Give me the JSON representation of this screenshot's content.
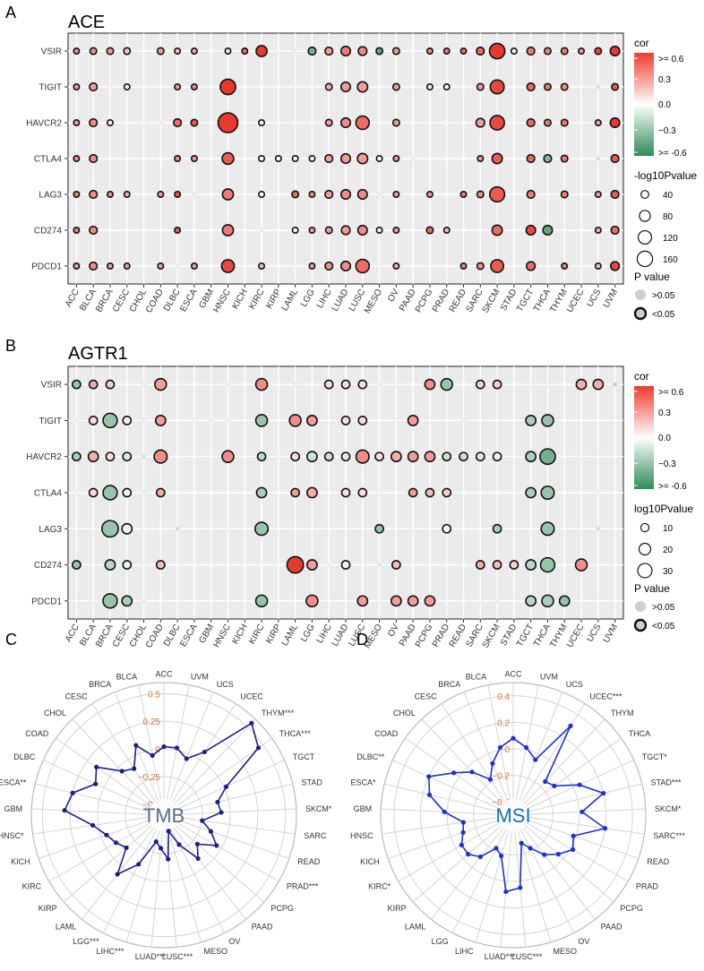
{
  "figure": {
    "panel_letters": [
      "A",
      "B",
      "C",
      "D"
    ],
    "legend": {
      "cor_title": "cor",
      "cor_ticks": [
        ">= 0.6",
        "0.3",
        "0.0",
        "−0.3",
        ">= -0.6"
      ],
      "size_title_ace": "-log10Pvalue",
      "size_values_ace": [
        "40",
        "80",
        "120",
        "160"
      ],
      "size_title_agtr1": "log10Pvalue",
      "size_values_agtr1": [
        "10",
        "20",
        "30"
      ],
      "pvalue_title": "P value",
      "pvalue_labels": [
        ">0.05",
        "<0.05"
      ]
    },
    "colors": {
      "positive": "#e8392f",
      "negative": "#2e8b57",
      "zero": "#ffffff",
      "panel_bg": "#ebebeb",
      "tmb": "#1c1f8a",
      "msi": "#1f2fd6",
      "tick_orange": "#d9733a",
      "tmb_label": "#5a6e8e",
      "msi_label": "#1a6fb8"
    }
  },
  "chart_data": [
    {
      "type": "dot_heatmap",
      "title": "ACE",
      "rows": [
        "VSIR",
        "TIGIT",
        "HAVCR2",
        "CTLA4",
        "LAG3",
        "CD274",
        "PDCD1"
      ],
      "columns": [
        "ACC",
        "BLCA",
        "BRCA",
        "CESC",
        "CHOL",
        "COAD",
        "DLBC",
        "ESCA",
        "GBM",
        "HNSC",
        "KICH",
        "KIRC",
        "KIRP",
        "LAML",
        "LGG",
        "LIHC",
        "LUAD",
        "LUSC",
        "MESO",
        "OV",
        "PAAD",
        "PCPG",
        "PRAD",
        "READ",
        "SARC",
        "SKCM",
        "STAD",
        "TGCT",
        "THCA",
        "THYM",
        "UCEC",
        "UCS",
        "UVM"
      ],
      "cor": [
        [
          0.35,
          0.35,
          0.3,
          0.2,
          0.02,
          0.3,
          0.2,
          0.25,
          0.01,
          0.1,
          0.45,
          0.6,
          0.05,
          0.1,
          -0.4,
          0.3,
          0.4,
          0.35,
          -0.45,
          0.3,
          0,
          0.35,
          0.4,
          0.45,
          0.45,
          0.7,
          0.02,
          0.4,
          0.35,
          0.4,
          0.3,
          0.55,
          0.6
        ],
        [
          0.3,
          0.3,
          0.05,
          0.05,
          0,
          0.02,
          0.3,
          0.35,
          0.01,
          0.7,
          0.02,
          0,
          0,
          0.05,
          0.05,
          0.25,
          0.3,
          0.3,
          0.02,
          0.3,
          0,
          0.05,
          0.05,
          0,
          0.3,
          0.55,
          0,
          0.45,
          0.4,
          0.35,
          0,
          0.2,
          0.5
        ],
        [
          0.3,
          0.35,
          0.05,
          0.02,
          -0.05,
          0.1,
          0.45,
          0.5,
          0.01,
          0.75,
          0.02,
          0.05,
          0,
          0.05,
          0.05,
          0.3,
          0.35,
          0.45,
          0.02,
          0.3,
          0,
          0,
          0,
          0,
          0.3,
          0.55,
          0,
          0.45,
          0.4,
          0.4,
          0.02,
          0.3,
          0.6
        ],
        [
          0.35,
          0.35,
          0,
          0,
          0,
          0,
          0.35,
          0.3,
          0.01,
          0.5,
          0.02,
          0,
          0,
          0.02,
          0.02,
          0.3,
          0.3,
          0.3,
          0.02,
          0.3,
          -0.1,
          0,
          0,
          0,
          0.3,
          0.5,
          0,
          0.45,
          -0.35,
          0.4,
          0,
          0.2,
          0.5
        ],
        [
          0.4,
          0.35,
          0.35,
          0.25,
          0,
          0.3,
          0.5,
          0.1,
          0,
          0.4,
          0.02,
          0,
          0,
          0.45,
          0.35,
          0.3,
          0.35,
          0.35,
          0.1,
          0.3,
          0,
          0.3,
          0,
          0.4,
          0.35,
          0.5,
          0,
          0.4,
          0.02,
          0.4,
          0,
          0.3,
          0.5
        ],
        [
          0.4,
          0.35,
          0,
          0,
          0,
          0.02,
          0.5,
          0.02,
          0,
          0.4,
          0.02,
          -0.1,
          0,
          0.05,
          0.3,
          0.3,
          0.3,
          0.35,
          0.05,
          0.3,
          0,
          0.45,
          0.2,
          0,
          0.02,
          0.45,
          0,
          0.55,
          -0.45,
          0.02,
          0,
          0.25,
          0.45
        ],
        [
          0.3,
          0.35,
          0.3,
          0.3,
          0.02,
          0.3,
          0.1,
          0.3,
          0,
          0.55,
          0.02,
          0.2,
          0,
          0.05,
          0.3,
          0.35,
          0.35,
          0.45,
          0.02,
          0.25,
          0,
          0.02,
          0,
          0.4,
          0.35,
          0.5,
          0,
          0.45,
          0.02,
          0.4,
          0.02,
          0.2,
          0.55
        ]
      ],
      "neglog10p": [
        [
          20,
          30,
          30,
          30,
          0,
          30,
          20,
          20,
          0,
          20,
          20,
          80,
          0,
          0,
          40,
          40,
          60,
          50,
          30,
          30,
          0,
          20,
          20,
          20,
          40,
          160,
          20,
          40,
          30,
          30,
          20,
          30,
          60
        ],
        [
          20,
          40,
          0,
          20,
          0,
          0,
          20,
          20,
          0,
          160,
          0,
          0,
          0,
          0,
          0,
          30,
          60,
          70,
          0,
          30,
          0,
          10,
          20,
          0,
          30,
          130,
          0,
          40,
          30,
          30,
          0,
          0,
          30
        ],
        [
          20,
          40,
          20,
          0,
          0,
          0,
          40,
          30,
          0,
          260,
          0,
          20,
          0,
          0,
          0,
          30,
          60,
          120,
          0,
          30,
          0,
          0,
          0,
          0,
          50,
          140,
          0,
          40,
          30,
          30,
          0,
          20,
          60
        ],
        [
          20,
          40,
          0,
          0,
          0,
          0,
          20,
          20,
          0,
          90,
          0,
          20,
          20,
          20,
          20,
          40,
          60,
          70,
          20,
          20,
          0,
          0,
          0,
          0,
          20,
          70,
          0,
          40,
          40,
          30,
          0,
          0,
          40
        ],
        [
          20,
          40,
          20,
          20,
          0,
          20,
          20,
          0,
          0,
          80,
          0,
          20,
          0,
          30,
          20,
          40,
          60,
          60,
          0,
          20,
          0,
          20,
          0,
          20,
          30,
          150,
          0,
          40,
          0,
          30,
          0,
          20,
          40
        ],
        [
          20,
          40,
          0,
          0,
          0,
          0,
          20,
          0,
          0,
          80,
          0,
          0,
          0,
          20,
          20,
          30,
          50,
          60,
          20,
          20,
          0,
          30,
          20,
          0,
          0,
          70,
          0,
          60,
          60,
          0,
          0,
          20,
          40
        ],
        [
          20,
          40,
          20,
          20,
          0,
          20,
          0,
          20,
          0,
          110,
          0,
          20,
          0,
          0,
          20,
          40,
          60,
          120,
          0,
          20,
          0,
          0,
          0,
          20,
          30,
          110,
          0,
          50,
          0,
          20,
          0,
          20,
          50
        ]
      ]
    },
    {
      "type": "dot_heatmap",
      "title": "AGTR1",
      "rows": [
        "VSIR",
        "TIGIT",
        "HAVCR2",
        "CTLA4",
        "LAG3",
        "CD274",
        "PDCD1"
      ],
      "columns": [
        "ACC",
        "BLCA",
        "BRCA",
        "CESC",
        "CHOL",
        "COAD",
        "DLBC",
        "ESCA",
        "GBM",
        "HNSC",
        "KICH",
        "KIRC",
        "KIRP",
        "LAML",
        "LGG",
        "LIHC",
        "LUAD",
        "LUSC",
        "MESO",
        "OV",
        "PAAD",
        "PCPG",
        "PRAD",
        "READ",
        "SARC",
        "SKCM",
        "STAD",
        "TGCT",
        "THCA",
        "THYM",
        "UCEC",
        "UCS",
        "UVM"
      ],
      "cor": [
        [
          -0.3,
          0.25,
          0.15,
          0.01,
          -0.1,
          0.3,
          0.02,
          0.01,
          0.05,
          0.1,
          0.01,
          0.35,
          0.01,
          -0.1,
          0,
          0.1,
          0.1,
          0.1,
          0.1,
          0.05,
          0,
          0.35,
          -0.3,
          0,
          0.15,
          0.15,
          0,
          0.05,
          0.05,
          0,
          0.25,
          0.25,
          0.3
        ],
        [
          -0.1,
          0.1,
          -0.3,
          -0.05,
          -0.1,
          0.3,
          0,
          0.05,
          0.1,
          0.1,
          0.01,
          -0.3,
          0,
          0.35,
          0.3,
          0,
          0.1,
          0.1,
          0,
          0.05,
          0.3,
          0.01,
          0,
          0.1,
          0,
          0,
          0,
          -0.25,
          -0.3,
          0,
          0,
          0,
          0
        ],
        [
          -0.25,
          0.25,
          0.1,
          -0.1,
          -0.2,
          0.35,
          0,
          0.02,
          0.05,
          0.35,
          0,
          -0.2,
          -0.05,
          0.1,
          -0.15,
          -0.15,
          -0.1,
          0.35,
          0.1,
          0.25,
          0.3,
          0.3,
          -0.15,
          -0.15,
          -0.1,
          0.05,
          0,
          -0.25,
          -0.4,
          0.01,
          0.05,
          0,
          0
        ],
        [
          -0.05,
          0.1,
          -0.3,
          -0.05,
          -0.1,
          0.25,
          0,
          0,
          0,
          0,
          0,
          -0.25,
          0,
          0.3,
          0.25,
          0,
          0.1,
          0.1,
          0.05,
          0,
          0.3,
          0.2,
          0.15,
          0.01,
          0,
          0,
          0,
          -0.25,
          -0.3,
          0,
          0,
          -0.05,
          0
        ],
        [
          0,
          0,
          -0.3,
          -0.05,
          0.05,
          0,
          -0.2,
          0,
          0,
          0.05,
          0,
          -0.3,
          0,
          0,
          0,
          0,
          0,
          0,
          -0.3,
          0,
          0.05,
          0,
          0.02,
          0,
          0,
          -0.25,
          0,
          0.02,
          -0.3,
          0,
          0,
          -0.2,
          0
        ],
        [
          -0.3,
          0,
          -0.2,
          -0.05,
          -0.05,
          0.2,
          0,
          0,
          0,
          0,
          0,
          0,
          0,
          0.85,
          0.3,
          0.1,
          0.05,
          0,
          -0.15,
          0.2,
          0,
          0,
          0,
          0,
          0.25,
          0.2,
          0.15,
          -0.2,
          -0.3,
          0,
          0.35,
          0,
          0
        ],
        [
          0,
          0.05,
          -0.3,
          -0.25,
          -0.1,
          0,
          0,
          0,
          0,
          0,
          0,
          -0.3,
          0,
          0,
          0.35,
          0,
          0,
          0.3,
          0.05,
          0.3,
          0.3,
          0.3,
          0,
          0,
          0.05,
          -0.1,
          0,
          -0.2,
          -0.25,
          -0.3,
          0,
          0,
          0
        ]
      ],
      "log10p": [
        [
          10,
          10,
          10,
          0,
          0,
          20,
          0,
          0,
          0,
          0,
          0,
          20,
          0,
          0,
          0,
          10,
          10,
          10,
          0,
          0,
          0,
          15,
          20,
          0,
          10,
          10,
          0,
          0,
          0,
          0,
          15,
          15,
          0
        ],
        [
          0,
          10,
          30,
          10,
          0,
          15,
          0,
          0,
          0,
          0,
          0,
          20,
          0,
          20,
          15,
          0,
          10,
          10,
          0,
          0,
          15,
          0,
          0,
          0,
          0,
          0,
          0,
          15,
          20,
          0,
          0,
          0,
          0
        ],
        [
          10,
          15,
          10,
          10,
          0,
          25,
          0,
          0,
          0,
          20,
          0,
          10,
          0,
          10,
          15,
          10,
          10,
          25,
          10,
          15,
          15,
          15,
          10,
          10,
          10,
          10,
          0,
          15,
          35,
          0,
          0,
          0,
          0
        ],
        [
          0,
          10,
          30,
          10,
          0,
          10,
          0,
          0,
          0,
          0,
          0,
          15,
          0,
          10,
          15,
          0,
          10,
          10,
          0,
          0,
          10,
          10,
          10,
          0,
          0,
          0,
          0,
          15,
          25,
          0,
          0,
          0,
          0
        ],
        [
          0,
          0,
          40,
          15,
          0,
          0,
          0,
          0,
          0,
          0,
          0,
          25,
          0,
          0,
          0,
          0,
          0,
          0,
          10,
          0,
          0,
          0,
          10,
          0,
          0,
          10,
          0,
          0,
          25,
          0,
          0,
          0,
          0
        ],
        [
          10,
          0,
          15,
          10,
          0,
          10,
          0,
          0,
          0,
          0,
          0,
          0,
          0,
          40,
          15,
          0,
          10,
          0,
          0,
          10,
          0,
          0,
          0,
          0,
          10,
          10,
          10,
          15,
          30,
          0,
          20,
          0,
          0
        ],
        [
          0,
          0,
          30,
          15,
          0,
          0,
          0,
          0,
          0,
          0,
          0,
          20,
          0,
          0,
          20,
          0,
          0,
          15,
          0,
          15,
          15,
          15,
          0,
          0,
          0,
          0,
          0,
          15,
          20,
          15,
          0,
          0,
          0
        ]
      ]
    },
    {
      "type": "radar",
      "title": "TMB",
      "categories": [
        "ACC",
        "UVM",
        "UCS",
        "UCEC",
        "THYM***",
        "THCA***",
        "TGCT",
        "STAD",
        "SKCM*",
        "SARC",
        "READ",
        "PRAD***",
        "PCPG",
        "PAAD",
        "OV",
        "MESO",
        "LUSC***",
        "LUAD***",
        "LIHC***",
        "LGG***",
        "LAML",
        "KIRP",
        "KIRC",
        "KICH",
        "HNSC*",
        "GBM",
        "ESCA**",
        "DLBC",
        "COAD",
        "CHOL",
        "CESC",
        "BRCA",
        "BLCA"
      ],
      "values": [
        0.02,
        0.02,
        -0.05,
        0.08,
        0.55,
        0.45,
        0.02,
        -0.1,
        -0.08,
        -0.25,
        -0.15,
        -0.05,
        -0.2,
        -0.1,
        -0.3,
        -0.45,
        -0.2,
        -0.3,
        -0.35,
        -0.1,
        0.08,
        -0.15,
        -0.1,
        -0.05,
        0.05,
        0.3,
        0.25,
        0.08,
        0.15,
        -0.05,
        -0.1,
        0.08,
        -0.05
      ],
      "rlim": [
        -0.6,
        0.6
      ],
      "ticks": [
        0.5,
        0.25,
        0,
        -0.25,
        -0.5
      ],
      "tick_labels": [
        "0.5",
        "0.25",
        "0",
        "−0.25",
        "−0.5"
      ]
    },
    {
      "type": "radar",
      "title": "MSI",
      "categories": [
        "ACC",
        "UVM",
        "UCS",
        "UCEC***",
        "THYM",
        "THCA",
        "TGCT*",
        "STAD***",
        "SKCM*",
        "SARC***",
        "READ",
        "PRAD",
        "PCPG",
        "PAAD",
        "OV",
        "MESO",
        "LUSC***",
        "LUAD***",
        "LIHC",
        "LGG",
        "LAML",
        "KIRP",
        "KIRC*",
        "KICH",
        "HNSC",
        "GBM",
        "ESCA*",
        "DLBC**",
        "COAD",
        "CHOL",
        "CESC",
        "BRCA",
        "BLCA"
      ],
      "values": [
        0.08,
        0.02,
        -0.05,
        0.3,
        -0.15,
        -0.12,
        0.05,
        0.2,
        0.02,
        0.2,
        -0.02,
        0.02,
        -0.05,
        -0.12,
        -0.22,
        -0.28,
        0.05,
        0.08,
        -0.18,
        -0.22,
        -0.1,
        -0.05,
        -0.05,
        -0.1,
        -0.12,
        0.02,
        0.15,
        0.2,
        0.05,
        -0.05,
        -0.18,
        -0.08,
        0.02
      ],
      "rlim": [
        -0.5,
        0.5
      ],
      "ticks": [
        0.4,
        0.2,
        0,
        -0.2,
        -0.4
      ],
      "tick_labels": [
        "0.4",
        "0.2",
        "0",
        "−0.2",
        "−0.4"
      ]
    }
  ]
}
